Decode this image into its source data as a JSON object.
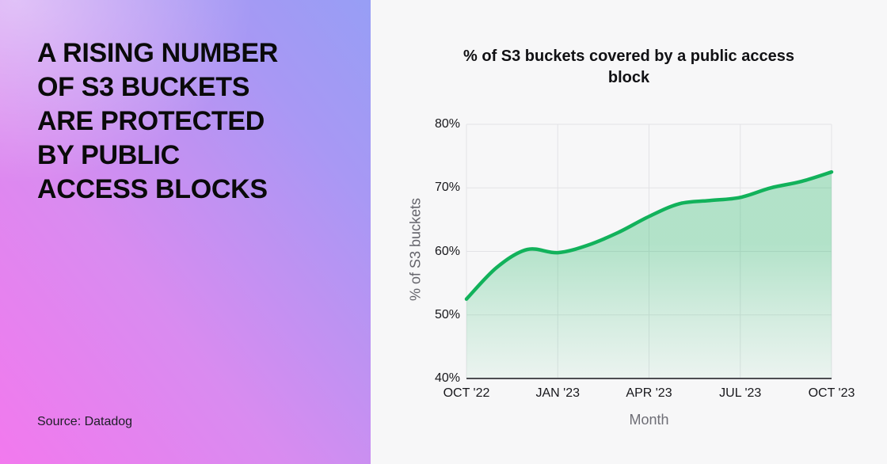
{
  "left_panel": {
    "title_lines": [
      "A RISING NUMBER",
      "OF S3 BUCKETS",
      "ARE PROTECTED",
      "BY PUBLIC",
      "ACCESS BLOCKS"
    ],
    "source": "Source: Datadog"
  },
  "chart": {
    "title": "% of S3 buckets covered by a public access block",
    "xlabel": "Month",
    "ylabel": "% of S3 buckets"
  },
  "chart_data": {
    "type": "area",
    "title": "% of S3 buckets covered by a public access block",
    "xlabel": "Month",
    "ylabel": "% of S3 buckets",
    "x": [
      "OCT '22",
      "NOV '22",
      "DEC '22",
      "JAN '23",
      "FEB '23",
      "MAR '23",
      "APR '23",
      "MAY '23",
      "JUN '23",
      "JUL '23",
      "AUG '23",
      "SEP '23",
      "OCT '23"
    ],
    "values": [
      52.5,
      57.5,
      60.3,
      59.8,
      61,
      63,
      65.5,
      67.5,
      68,
      68.5,
      70,
      71,
      72.5
    ],
    "x_tick_labels": [
      "OCT '22",
      "JAN '23",
      "APR '23",
      "JUL '23",
      "OCT '23"
    ],
    "y_ticks": [
      40,
      50,
      60,
      70,
      80
    ],
    "y_tick_labels": [
      "40%",
      "50%",
      "60%",
      "70%",
      "80%"
    ],
    "ylim": [
      40,
      80
    ],
    "grid": true,
    "legend": "none",
    "line_color": "#12b25b",
    "area_fill_top": "rgba(18,178,91,0.30)",
    "area_fill_mid": "rgba(18,178,91,0.17)",
    "area_fill_bottom": "rgba(18,178,91,0.05)",
    "grid_color": "#e3e3e6",
    "baseline_color": "#4d4d52"
  },
  "colors": {
    "gradient_pink": "#f279ee",
    "gradient_periwinkle": "#979ef5",
    "accent_green": "#12b25b",
    "panel_background": "#f7f7f8"
  }
}
